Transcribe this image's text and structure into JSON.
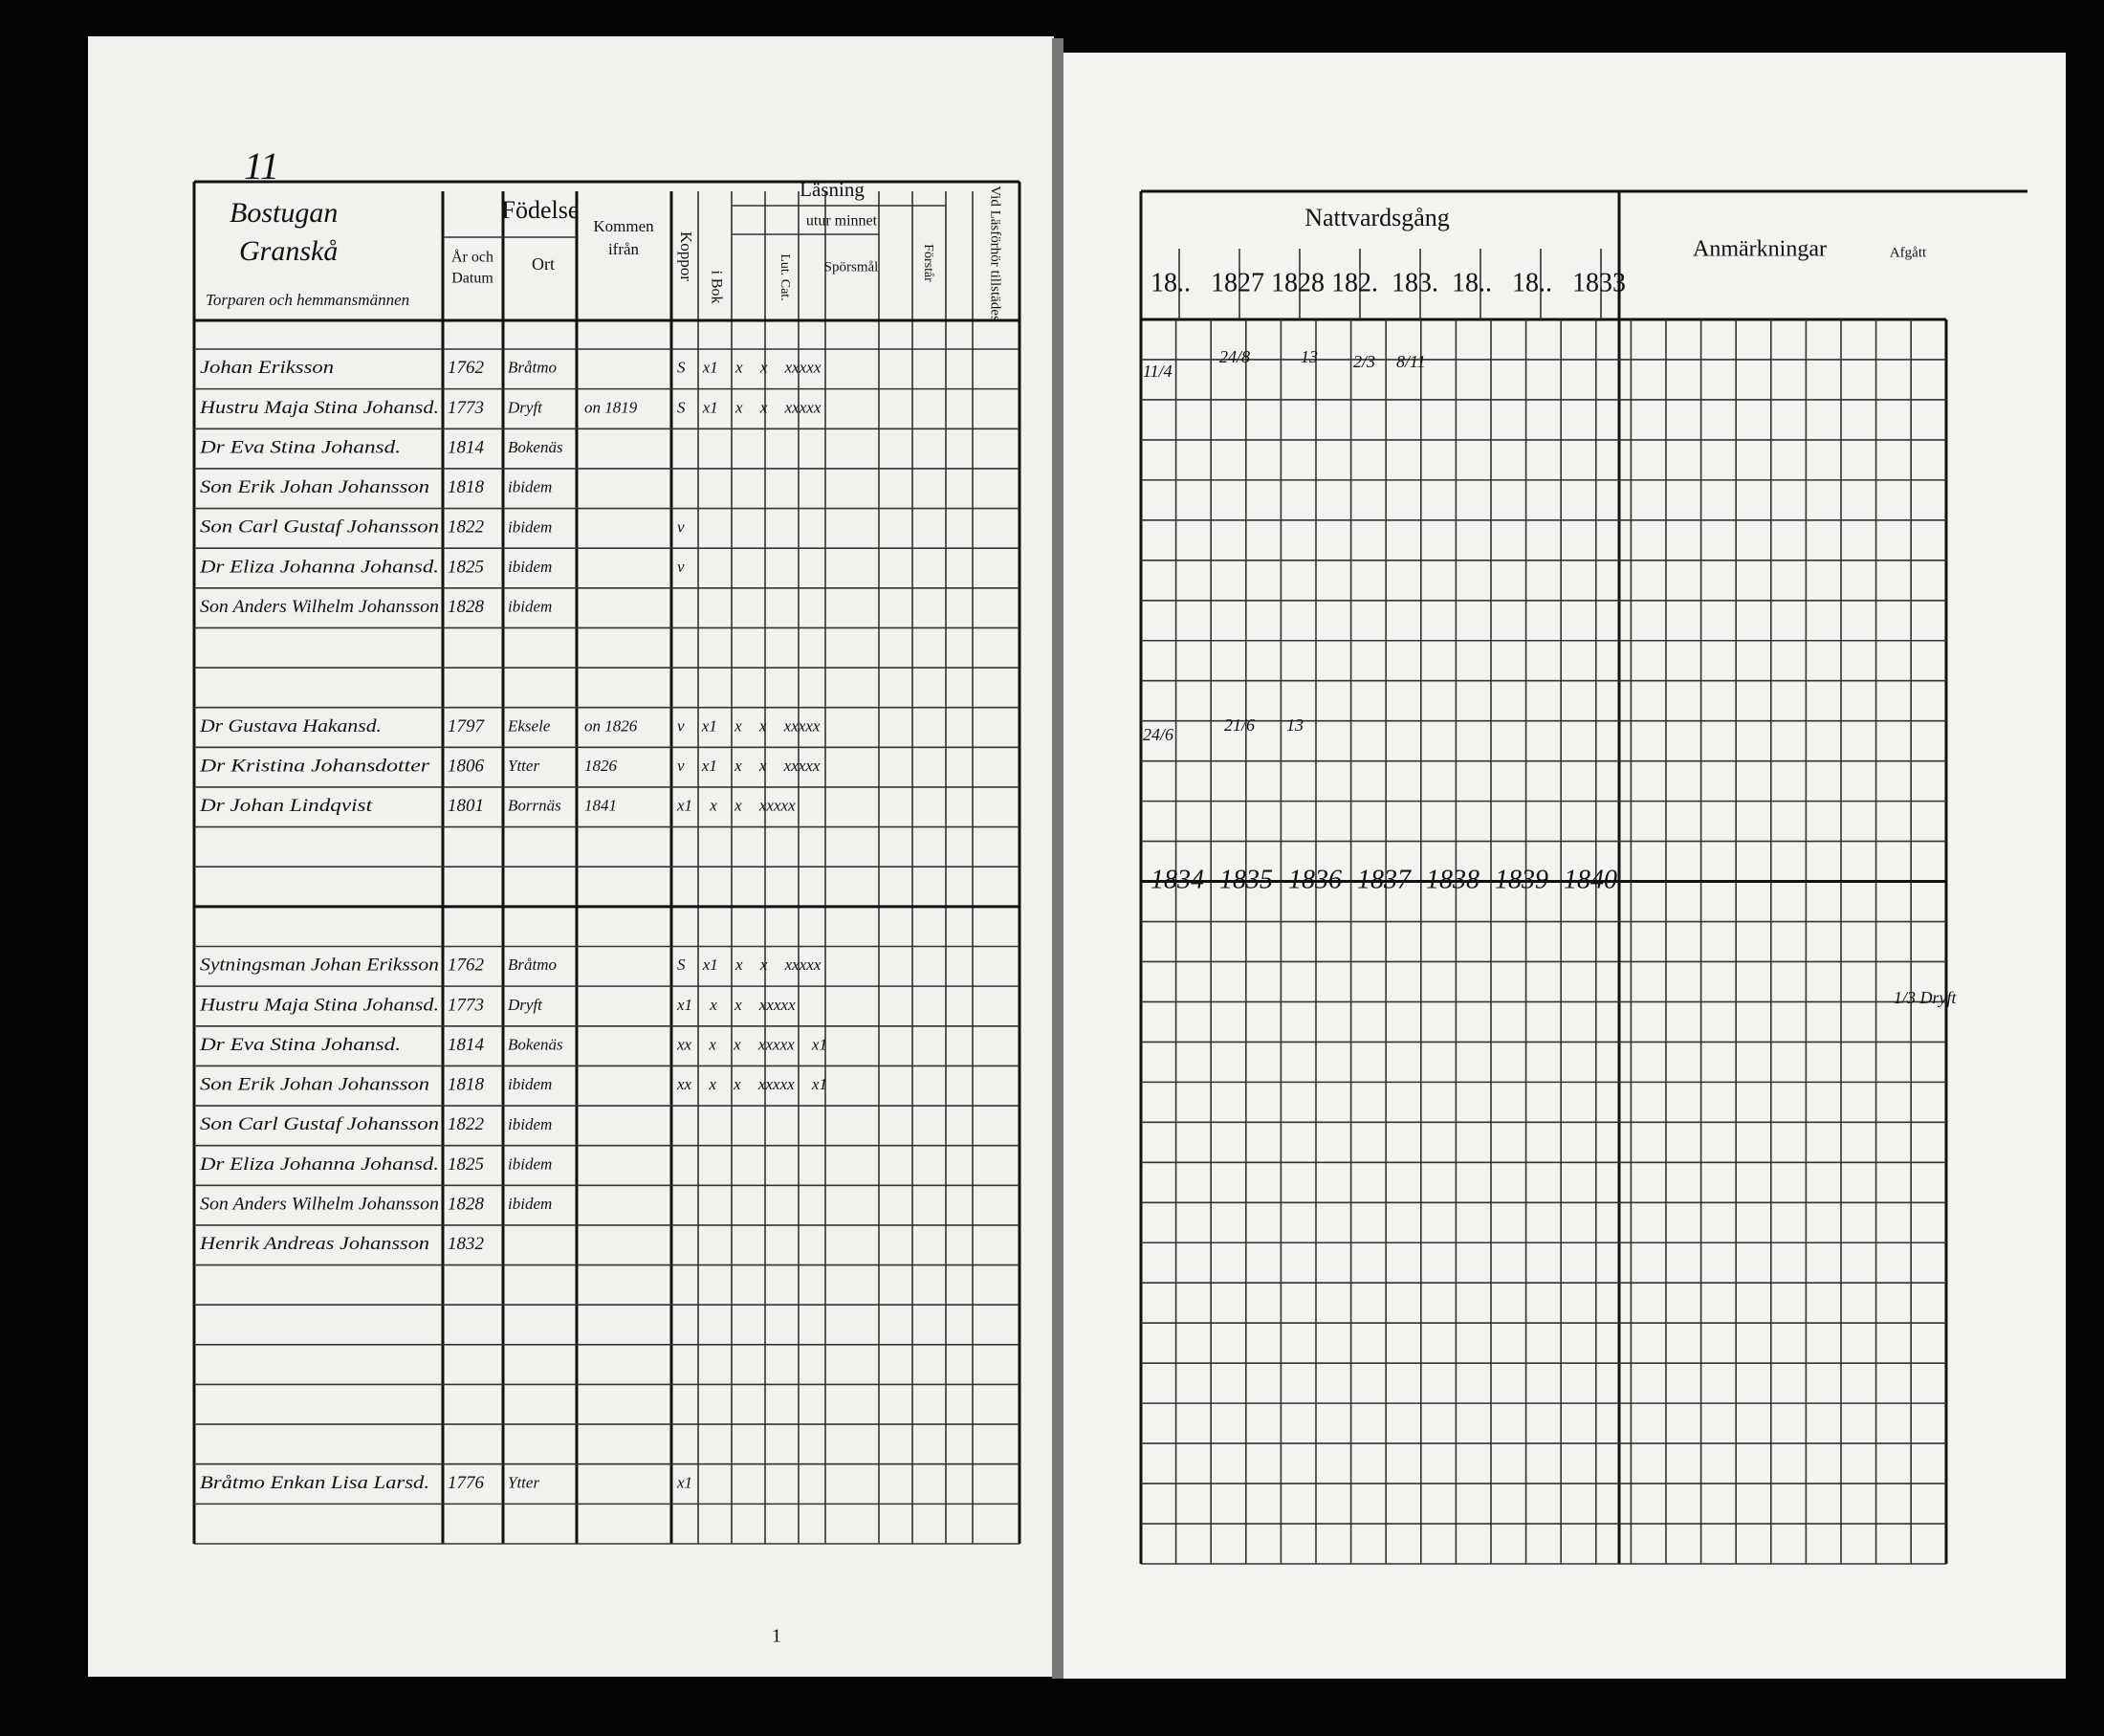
{
  "left_page": {
    "page_number": "11",
    "header": {
      "owner": "Bostugan",
      "place": "Granskå",
      "category": "Torparen och hemmansmännen",
      "birth": "Födelse",
      "date_1": "År och",
      "date_2": "Datum",
      "birthplace": "Ort",
      "came_from_1": "Kommen",
      "came_from_2": "ifrån",
      "smallpox": "Koppor",
      "reading": "Läsning",
      "by_heart": "utur minnet",
      "in_book": "i Bok",
      "catechism": "Lut. Cat.",
      "questions": "Spörsmål",
      "understands": "Förstår",
      "present": "Vid Läsförhör tillstädes"
    },
    "entries": [
      {
        "name": "Johan Eriksson",
        "date": "1762",
        "place": "Bråtmo",
        "came_from": "",
        "marks": "S x1 x x xxxxx"
      },
      {
        "name": "Hustru Maja Stina Johansd.",
        "date": "1773",
        "place": "Dryft",
        "came_from": "on 1819",
        "marks": "S x1 x x xxxxx"
      },
      {
        "name": "Dr Eva Stina Johansd.",
        "date": "1814",
        "place": "Bokenäs",
        "came_from": "",
        "marks": ""
      },
      {
        "name": "Son Erik Johan Johansson",
        "date": "1818",
        "place": "ibidem",
        "came_from": "",
        "marks": ""
      },
      {
        "name": "Son Carl Gustaf Johansson",
        "date": "1822",
        "place": "ibidem",
        "came_from": "",
        "marks": "v"
      },
      {
        "name": "Dr Eliza Johanna Johansd.",
        "date": "1825",
        "place": "ibidem",
        "came_from": "",
        "marks": "v"
      },
      {
        "name": "Son Anders Wilhelm Johansson",
        "date": "1828",
        "place": "ibidem",
        "came_from": "",
        "marks": ""
      },
      {
        "name": "Dr Gustava Hakansd.",
        "date": "1797",
        "place": "Eksele",
        "came_from": "on 1826",
        "marks": "v x1 x x xxxxx"
      },
      {
        "name": "Dr Kristina Johansdotter",
        "date": "1806",
        "place": "Ytter",
        "came_from": "1826",
        "marks": "v x1 x x xxxxx"
      },
      {
        "name": "Dr Johan Lindqvist",
        "date": "1801",
        "place": "Borrnäs",
        "came_from": "1841",
        "marks": "x1 x x xxxxx"
      },
      {
        "name": "Sytningsman Johan Eriksson",
        "date": "1762",
        "place": "Bråtmo",
        "came_from": "",
        "marks": "S x1 x x xxxxx"
      },
      {
        "name": "Hustru Maja Stina Johansd.",
        "date": "1773",
        "place": "Dryft",
        "came_from": "",
        "marks": "x1 x x xxxxx"
      },
      {
        "name": "Dr Eva Stina Johansd.",
        "date": "1814",
        "place": "Bokenäs",
        "came_from": "",
        "marks": "xx x x xxxxx x1"
      },
      {
        "name": "Son Erik Johan Johansson",
        "date": "1818",
        "place": "ibidem",
        "came_from": "",
        "marks": "xx x x xxxxx x1"
      },
      {
        "name": "Son Carl Gustaf Johansson",
        "date": "1822",
        "place": "ibidem",
        "came_from": "",
        "marks": ""
      },
      {
        "name": "Dr Eliza Johanna Johansd.",
        "date": "1825",
        "place": "ibidem",
        "came_from": "",
        "marks": ""
      },
      {
        "name": "Son Anders Wilhelm Johansson",
        "date": "1828",
        "place": "ibidem",
        "came_from": "",
        "marks": ""
      },
      {
        "name": "Henrik Andreas Johansson",
        "date": "1832",
        "place": "",
        "came_from": "",
        "marks": ""
      },
      {
        "name": "Bråtmo Enkan Lisa Larsd.",
        "date": "1776",
        "place": "Ytter",
        "came_from": "",
        "marks": "x1"
      }
    ],
    "footer": "1"
  },
  "right_page": {
    "header": {
      "communion": "Nattvardsgång",
      "remarks": "Anmärkningar",
      "departed": "Afgått"
    },
    "years_first": [
      "18..",
      "1827",
      "1828",
      "182.",
      "183.",
      "18..",
      "18..",
      "1833"
    ],
    "years_second": [
      "1834",
      "1835",
      "1836",
      "1837",
      "1838",
      "1839",
      "1840"
    ],
    "notes": [
      "11/4",
      "24/8",
      "13",
      "2/3",
      "8/11",
      "24/6",
      "21/6",
      "13",
      "1/3 Dryft"
    ]
  }
}
